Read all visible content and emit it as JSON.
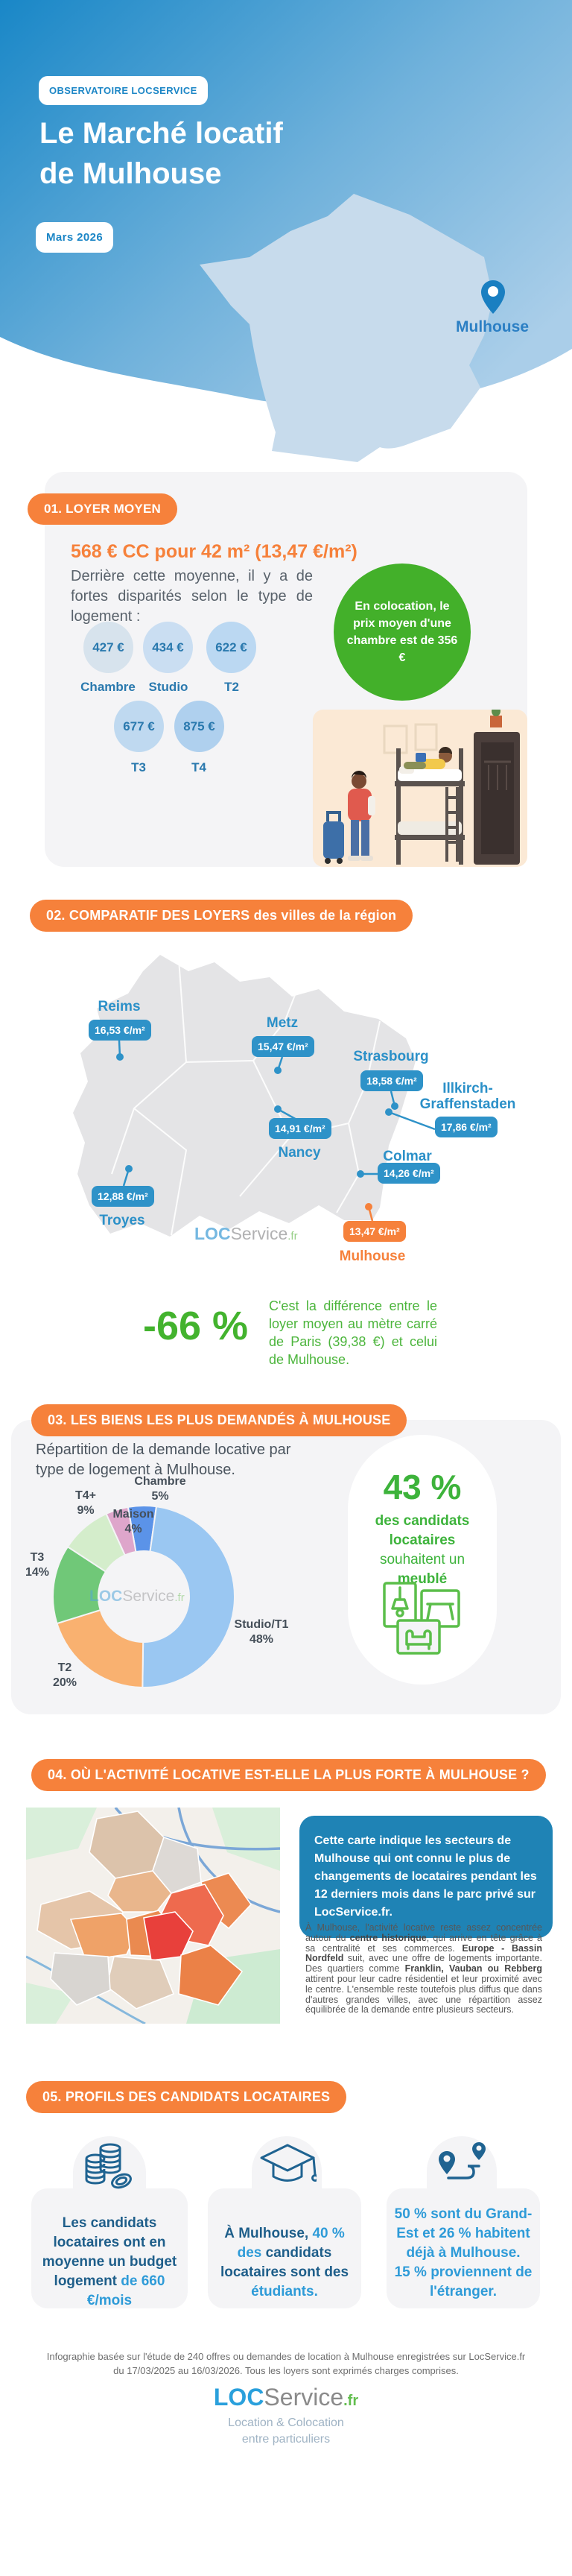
{
  "accents": {
    "orange": "#F6813B",
    "blue_tag": "#2E92C8",
    "green": "#43B02A",
    "header_blue_dark": "#1987C7",
    "header_blue_light": "#AACEE9",
    "navy": "#1E5E8A",
    "light_blue_text": "#2E9BD8",
    "info_box_blue": "#1F83B5"
  },
  "header": {
    "badge": "OBSERVATOIRE LOCSERVICE",
    "title_line1": "Le Marché locatif",
    "title_line2": "de Mulhouse",
    "date_badge": "Mars 2026",
    "map_pin_city": "Mulhouse"
  },
  "section1": {
    "pill": "01. LOYER MOYEN",
    "headline": "568 € CC pour 42 m² (13,47 €/m²)",
    "subtext": "Derrière cette moyenne, il y a de fortes disparités selon le type de logement :",
    "bubbles": [
      {
        "price": "427 €",
        "label": "Chambre"
      },
      {
        "price": "434 €",
        "label": "Studio"
      },
      {
        "price": "622 €",
        "label": "T2"
      },
      {
        "price": "677 €",
        "label": "T3"
      },
      {
        "price": "875 €",
        "label": "T4"
      }
    ],
    "coloc_text": "En colocation, le prix moyen d'une chambre est de 356 €"
  },
  "section2": {
    "pill": "02. COMPARATIF DES LOYERS des villes de la région",
    "cities": [
      {
        "name": "Reims",
        "price": "16,53 €/m²",
        "highlight": false
      },
      {
        "name": "Metz",
        "price": "15,47 €/m²",
        "highlight": false
      },
      {
        "name": "Strasbourg",
        "price": "18,58 €/m²",
        "highlight": false
      },
      {
        "name": "Illkirch-\nGraffenstaden",
        "price": "17,86 €/m²",
        "highlight": false
      },
      {
        "name": "Nancy",
        "price": "14,91 €/m²",
        "highlight": false
      },
      {
        "name": "Colmar",
        "price": "14,26 €/m²",
        "highlight": false
      },
      {
        "name": "Troyes",
        "price": "12,88 €/m²",
        "highlight": false
      },
      {
        "name": "Mulhouse",
        "price": "13,47 €/m²",
        "highlight": true
      }
    ],
    "city_names": {
      "reims": "Reims",
      "metz": "Metz",
      "strasbourg": "Strasbourg",
      "illkirch1": "Illkirch-",
      "illkirch2": "Graffenstaden",
      "nancy": "Nancy",
      "colmar": "Colmar",
      "troyes": "Troyes",
      "mulhouse": "Mulhouse"
    },
    "watermark": {
      "loc": "LOC",
      "service": "Service",
      "fr": ".fr"
    },
    "delta_value": "-66 %",
    "delta_text": "C'est la différence entre le loyer moyen au mètre carré de Paris (39,38 €) et celui de Mulhouse."
  },
  "section3": {
    "pill": "03. LES BIENS LES PLUS DEMANDÉS À MULHOUSE",
    "intro": "Répartition de la demande locative par type de logement à Mulhouse.",
    "stat_value": "43 %",
    "stat_line1": "des candidats",
    "stat_line2": "locataires",
    "stat_line3": "souhaitent un",
    "stat_line4": "meublé",
    "watermark": {
      "loc": "LOC",
      "service": "Service",
      "fr": ".fr"
    }
  },
  "chart_data": [
    {
      "type": "donut",
      "title": "Répartition de la demande locative par type de logement à Mulhouse",
      "labels": [
        "Chambre",
        "Studio/T1",
        "T2",
        "T3",
        "T4+",
        "Maison"
      ],
      "values": [
        5,
        48,
        20,
        14,
        9,
        4
      ],
      "unit": "%",
      "colors": [
        "#5B93E8",
        "#9AC7F2",
        "#F9B170",
        "#70C878",
        "#D4EDCB",
        "#DEA6CB"
      ],
      "start_angle_deg": -10,
      "legend_position": "around"
    },
    {
      "type": "table",
      "title": "Comparatif des loyers des villes de la région (€/m²)",
      "categories": [
        "Reims",
        "Metz",
        "Strasbourg",
        "Illkirch-Graffenstaden",
        "Nancy",
        "Colmar",
        "Troyes",
        "Mulhouse"
      ],
      "values": [
        16.53,
        15.47,
        18.58,
        17.86,
        14.91,
        14.26,
        12.88,
        13.47
      ],
      "annotations": [
        "Paris: 39,38 €/m²",
        "Mulhouse vs Paris: -66 %"
      ]
    }
  ],
  "section4": {
    "pill": "04. OÙ L'ACTIVITÉ LOCATIVE EST-ELLE LA PLUS FORTE À MULHOUSE ?",
    "info_box": "Cette carte indique les secteurs de Mulhouse qui ont connu le plus de changements de locataires pendant les 12 derniers mois dans le parc privé sur LocService.fr.",
    "para_seg1": "À Mulhouse, l'activité locative reste assez concentrée autour du ",
    "para_seg2": "centre historique",
    "para_seg3": ", qui arrive en tête grâce à sa centralité et ses commerces. ",
    "para_seg4": "Europe - Bassin Nordfeld",
    "para_seg5": " suit, avec une offre de logements importante. Des quartiers comme ",
    "para_seg6": "Franklin, Vauban ou Rebberg",
    "para_seg7": " attirent pour leur cadre résidentiel et leur proximité avec le centre. L'ensemble reste toutefois plus diffus que dans d'autres grandes villes, avec une répartition assez équilibrée de la demande entre plusieurs secteurs."
  },
  "section5": {
    "pill": "05. PROFILS DES CANDIDATS LOCATAIRES",
    "card1_seg1": "Les candidats locataires ont en moyenne un budget logement ",
    "card1_seg2": "de 660 €/mois",
    "card2_seg1": "À Mulhouse, ",
    "card2_seg2": "40 % des ",
    "card2_seg3": "candidats locataires sont des ",
    "card2_seg4": "étudiants.",
    "card3_line1": "50 % sont du Grand-Est et 26 % habitent déjà à Mulhouse.",
    "card3_line2": "15 % proviennent de l'étranger."
  },
  "footer": {
    "note_line1": "Infographie basée sur l'étude de 240 offres ou demandes de location à Mulhouse enregistrées sur LocService.fr",
    "note_line2": "du 17/03/2025  au 16/03/2026. Tous les loyers sont exprimés charges comprises.",
    "logo_loc": "LOC",
    "logo_service": "Service",
    "logo_fr": ".fr",
    "tagline_line1": "Location & Colocation",
    "tagline_line2": "entre particuliers"
  }
}
